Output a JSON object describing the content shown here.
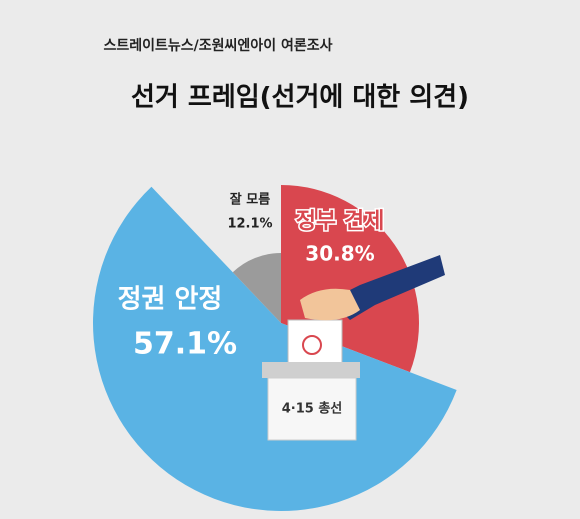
{
  "chart_data": {
    "type": "pie",
    "subtitle": "스트레이트뉴스/조원씨엔아이 여론조사",
    "title": "선거 프레임(선거에 대한 의견)",
    "categories": [
      "정부 견제",
      "정권 안정",
      "잘 모름"
    ],
    "values": [
      30.8,
      57.1,
      12.1
    ],
    "value_labels": [
      "30.8%",
      "57.1%",
      "12.1%"
    ],
    "colors": [
      "#d9474f",
      "#5ab3e4",
      "#9b9b9b"
    ],
    "annotation": "4·15 총선"
  }
}
